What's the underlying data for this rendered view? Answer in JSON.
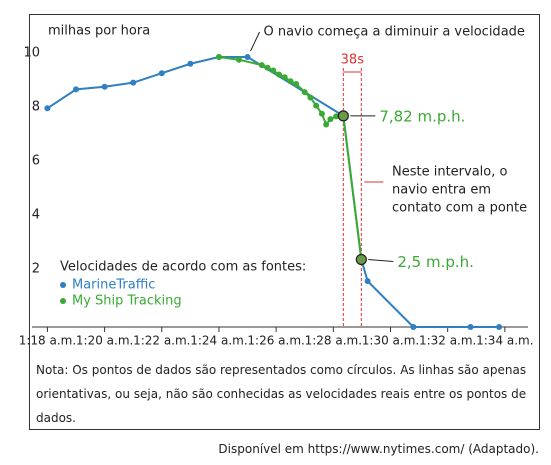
{
  "chart_data": {
    "type": "line",
    "y_label": "milhas por hora",
    "xlim": [
      17.6,
      34.6
    ],
    "ylim": [
      0,
      11
    ],
    "xticks": [
      {
        "value": 18,
        "label": "1:18 a.m."
      },
      {
        "value": 20,
        "label": "1:20 a.m."
      },
      {
        "value": 22,
        "label": "1:22 a.m."
      },
      {
        "value": 24,
        "label": "1:24 a.m."
      },
      {
        "value": 26,
        "label": "1:26 a.m."
      },
      {
        "value": 28,
        "label": "1:28 a.m."
      },
      {
        "value": 30,
        "label": "1:30 a.m."
      },
      {
        "value": 32,
        "label": "1:32 a.m."
      },
      {
        "value": 34,
        "label": "1:34 a.m."
      }
    ],
    "yticks": [
      2,
      4,
      6,
      8,
      10
    ],
    "legend_title": "Velocidades de acordo com as fontes:",
    "series": [
      {
        "name": "MarineTraffic",
        "color": "#2f7fc1",
        "x": [
          18,
          19,
          20,
          21,
          22,
          23,
          24,
          25,
          28.35,
          28.98,
          29.2,
          30.8,
          32.8,
          33.8
        ],
        "values": [
          8.1,
          8.8,
          8.9,
          9.05,
          9.4,
          9.75,
          10.0,
          10.0,
          7.82,
          2.5,
          1.7,
          0,
          0,
          0
        ]
      },
      {
        "name": "My Ship Tracking",
        "color": "#3aaa35",
        "x": [
          24,
          24.7,
          25.5,
          25.7,
          25.9,
          26.1,
          26.3,
          26.5,
          26.7,
          27,
          27.2,
          27.4,
          27.6,
          27.75,
          27.9,
          28.1,
          28.35,
          28.98
        ],
        "values": [
          10.0,
          9.9,
          9.7,
          9.6,
          9.5,
          9.35,
          9.25,
          9.1,
          9.0,
          8.7,
          8.5,
          8.2,
          7.9,
          7.5,
          7.7,
          7.8,
          7.82,
          2.5
        ]
      }
    ],
    "annotations": {
      "slowdown": "O navio começa a diminuir a velocidade",
      "interval": "38s",
      "speed_high": "7,82 m.p.h.",
      "contact": [
        "Neste intervalo, o",
        "navio entra em",
        "contato com a ponte"
      ],
      "speed_low": "2,5 m.p.h."
    },
    "note": "Nota: Os pontos de dados são representados como círculos. As linhas são apenas orientativas, ou seja, não são conhecidas as velocidades reais entre os pontos de dados.",
    "source": "Disponível em https://www.nytimes.com/ (Adaptado)."
  }
}
